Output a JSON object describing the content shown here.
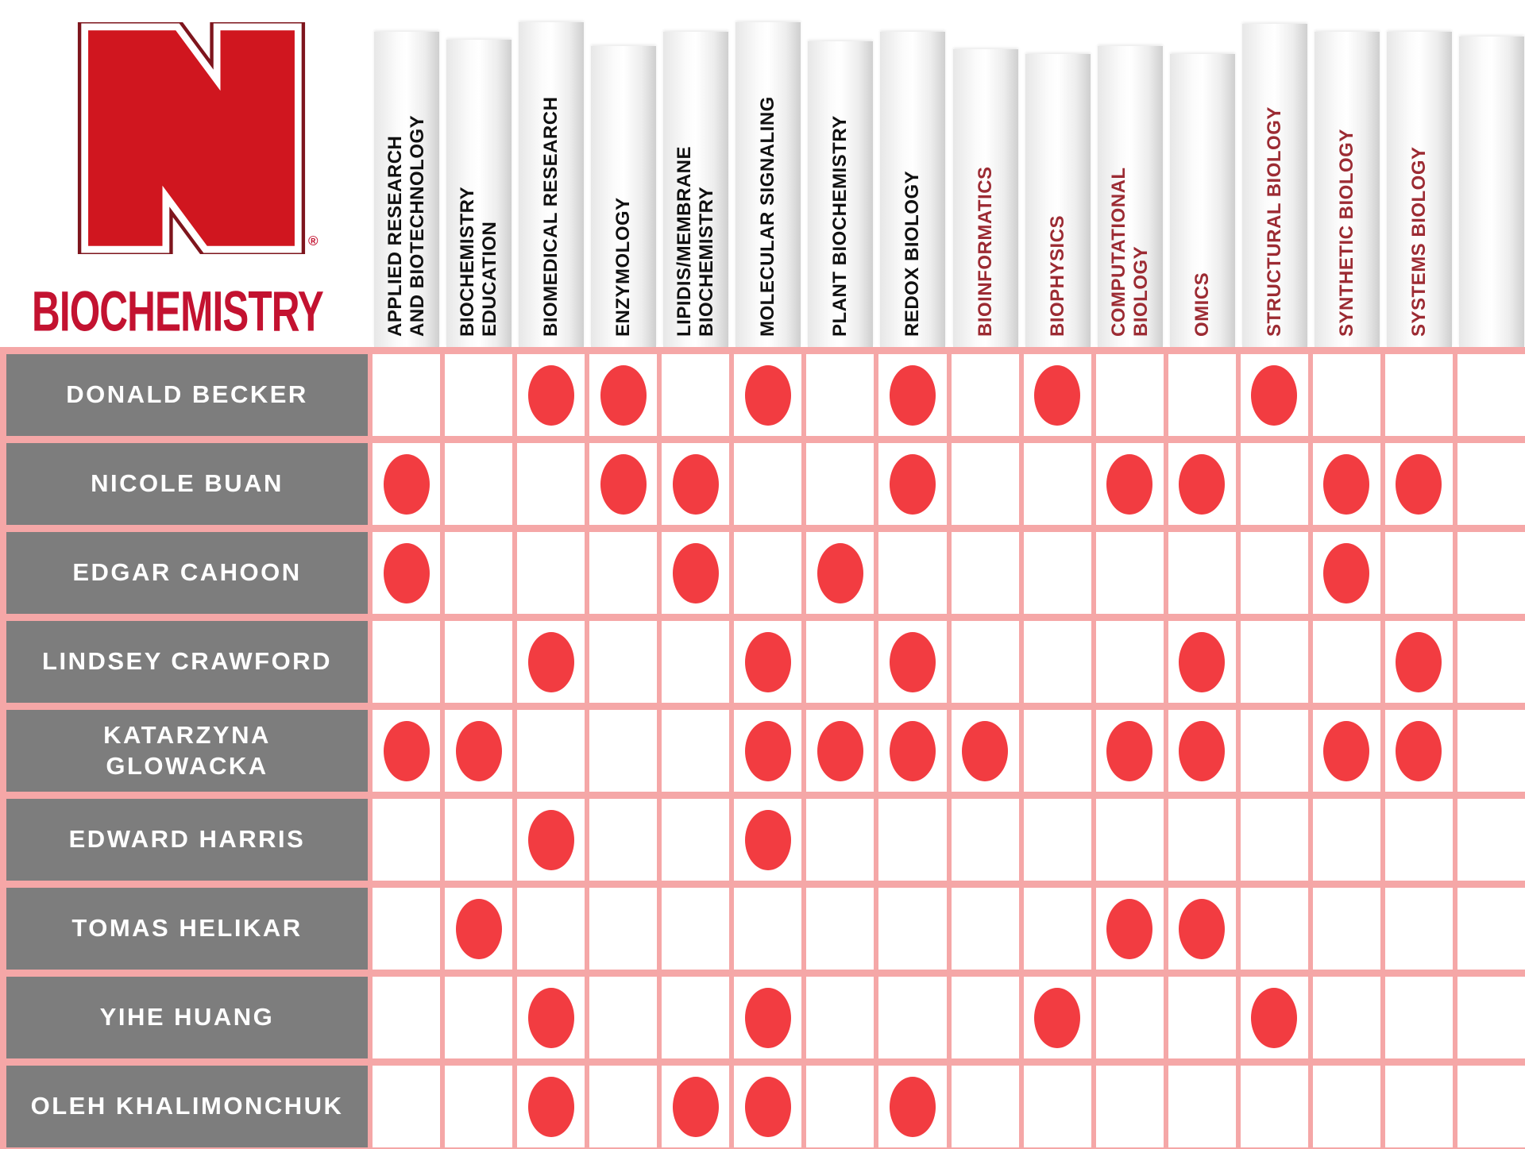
{
  "brand": {
    "logo": "nebraska-n-logo",
    "registered_mark": "®",
    "department": "BIOCHEMISTRY"
  },
  "colors": {
    "title_red": "#c31230",
    "logo_red": "#d0161f",
    "logo_outline": "#7e151d",
    "dot_red": "#f23c41",
    "grid_pink": "#f5a7a7",
    "name_cell_gray": "#7d7d7d",
    "name_text": "#ffffff",
    "header_text_black": "#111111",
    "header_text_maroon": "#9c2b33"
  },
  "columns": [
    {
      "lines": [
        "APPLIED RESEARCH",
        "AND BIOTECHNOLOGY"
      ],
      "emphasis": false
    },
    {
      "lines": [
        "BIOCHEMISTRY",
        "EDUCATION"
      ],
      "emphasis": false
    },
    {
      "lines": [
        "BIOMEDICAL RESEARCH"
      ],
      "emphasis": false
    },
    {
      "lines": [
        "ENZYMOLOGY"
      ],
      "emphasis": false
    },
    {
      "lines": [
        "LIPIDIS/MEMBRANE",
        "BIOCHEMISTRY"
      ],
      "emphasis": false
    },
    {
      "lines": [
        "MOLECULAR SIGNALING"
      ],
      "emphasis": false
    },
    {
      "lines": [
        "PLANT BIOCHEMISTRY"
      ],
      "emphasis": false
    },
    {
      "lines": [
        "REDOX BIOLOGY"
      ],
      "emphasis": false
    },
    {
      "lines": [
        "BIOINFORMATICS"
      ],
      "emphasis": true
    },
    {
      "lines": [
        "BIOPHYSICS"
      ],
      "emphasis": true
    },
    {
      "lines": [
        "COMPUTATIONAL",
        "BIOLOGY"
      ],
      "emphasis": true
    },
    {
      "lines": [
        "OMICS"
      ],
      "emphasis": true
    },
    {
      "lines": [
        "STRUCTURAL BIOLOGY"
      ],
      "emphasis": true
    },
    {
      "lines": [
        "SYNTHETIC BIOLOGY"
      ],
      "emphasis": true
    },
    {
      "lines": [
        "SYSTEMS BIOLOGY"
      ],
      "emphasis": true
    },
    {
      "lines": [],
      "emphasis": false
    }
  ],
  "faculty": [
    {
      "name": "DONALD BECKER",
      "areas": [
        2,
        3,
        5,
        7,
        9,
        12
      ]
    },
    {
      "name": "NICOLE BUAN",
      "areas": [
        0,
        3,
        4,
        7,
        10,
        11,
        13,
        14
      ]
    },
    {
      "name": "EDGAR CAHOON",
      "areas": [
        0,
        4,
        6,
        13
      ]
    },
    {
      "name": "LINDSEY CRAWFORD",
      "areas": [
        2,
        5,
        7,
        11,
        14
      ]
    },
    {
      "name": "KATARZYNA\nGLOWACKA",
      "areas": [
        0,
        1,
        5,
        6,
        7,
        8,
        10,
        11,
        13,
        14
      ]
    },
    {
      "name": "EDWARD HARRIS",
      "areas": [
        2,
        5
      ]
    },
    {
      "name": "TOMAS HELIKAR",
      "areas": [
        1,
        10,
        11
      ]
    },
    {
      "name": "YIHE HUANG",
      "areas": [
        2,
        5,
        9,
        12
      ]
    },
    {
      "name": "OLEH KHALIMONCHUK",
      "areas": [
        2,
        4,
        5,
        7
      ]
    }
  ],
  "chart_data": {
    "type": "table",
    "title": "BIOCHEMISTRY faculty research-area matrix (University of Nebraska)",
    "columns": [
      "APPLIED RESEARCH AND BIOTECHNOLOGY",
      "BIOCHEMISTRY EDUCATION",
      "BIOMEDICAL RESEARCH",
      "ENZYMOLOGY",
      "LIPIDIS/MEMBRANE BIOCHEMISTRY",
      "MOLECULAR SIGNALING",
      "PLANT BIOCHEMISTRY",
      "REDOX BIOLOGY",
      "BIOINFORMATICS",
      "BIOPHYSICS",
      "COMPUTATIONAL BIOLOGY",
      "OMICS",
      "STRUCTURAL BIOLOGY",
      "SYNTHETIC BIOLOGY",
      "SYSTEMS BIOLOGY"
    ],
    "rows": [
      "DONALD BECKER",
      "NICOLE BUAN",
      "EDGAR CAHOON",
      "LINDSEY CRAWFORD",
      "KATARZYNA GLOWACKA",
      "EDWARD HARRIS",
      "TOMAS HELIKAR",
      "YIHE HUANG",
      "OLEH KHALIMONCHUK"
    ],
    "matrix": [
      [
        0,
        0,
        1,
        1,
        0,
        1,
        0,
        1,
        0,
        1,
        0,
        0,
        1,
        0,
        0
      ],
      [
        1,
        0,
        0,
        1,
        1,
        0,
        0,
        1,
        0,
        0,
        1,
        1,
        0,
        1,
        1
      ],
      [
        1,
        0,
        0,
        0,
        1,
        0,
        1,
        0,
        0,
        0,
        0,
        0,
        0,
        1,
        0
      ],
      [
        0,
        0,
        1,
        0,
        0,
        1,
        0,
        1,
        0,
        0,
        0,
        1,
        0,
        0,
        1
      ],
      [
        1,
        1,
        0,
        0,
        0,
        1,
        1,
        1,
        1,
        0,
        1,
        1,
        0,
        1,
        1
      ],
      [
        0,
        0,
        1,
        0,
        0,
        1,
        0,
        0,
        0,
        0,
        0,
        0,
        0,
        0,
        0
      ],
      [
        0,
        1,
        0,
        0,
        0,
        0,
        0,
        0,
        0,
        0,
        1,
        1,
        0,
        0,
        0
      ],
      [
        0,
        0,
        1,
        0,
        0,
        1,
        0,
        0,
        0,
        1,
        0,
        0,
        1,
        0,
        0
      ],
      [
        0,
        0,
        1,
        0,
        1,
        1,
        0,
        1,
        0,
        0,
        0,
        0,
        0,
        0,
        0
      ]
    ],
    "legend_position": "none",
    "grid": true
  }
}
